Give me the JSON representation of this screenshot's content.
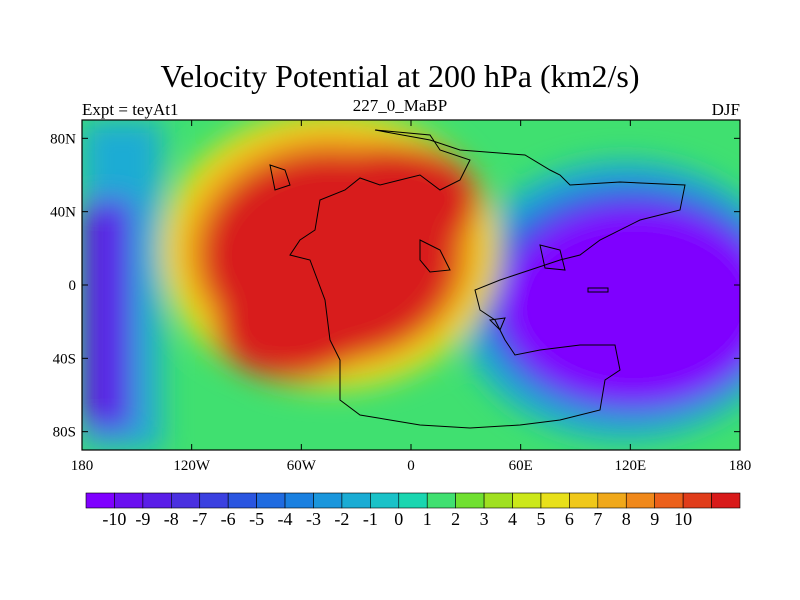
{
  "title": "Velocity Potential at 200 hPa (km2/s)",
  "left_string": "Expt = teyAt1",
  "center_string": "227_0_MaBP",
  "right_string": "DJF",
  "map": {
    "lon_ticks": [
      "180",
      "120W",
      "60W",
      "0",
      "60E",
      "120E",
      "180"
    ],
    "lat_ticks": [
      "80N",
      "40N",
      "0",
      "40S",
      "80S"
    ]
  },
  "colorbar": {
    "labels": [
      "-10",
      "-9",
      "-8",
      "-7",
      "-6",
      "-5",
      "-4",
      "-3",
      "-2",
      "-1",
      "0",
      "1",
      "2",
      "3",
      "4",
      "5",
      "6",
      "7",
      "8",
      "9",
      "10"
    ],
    "colors": [
      "#7f00ff",
      "#6a10f0",
      "#5a1ee8",
      "#4a30e0",
      "#3a40e0",
      "#2a55e0",
      "#1f6be0",
      "#1a80e0",
      "#1a96dc",
      "#1aacd4",
      "#1ac2c8",
      "#1ad6b0",
      "#40e070",
      "#70e030",
      "#a0e020",
      "#cce81a",
      "#e8e01a",
      "#f0c81a",
      "#f0a81a",
      "#f0881a",
      "#ec601a",
      "#e03c1a",
      "#d81a1a"
    ]
  },
  "field": {
    "description_colors": {
      "max": "#d81a1a",
      "min": "#7f00ff"
    }
  }
}
